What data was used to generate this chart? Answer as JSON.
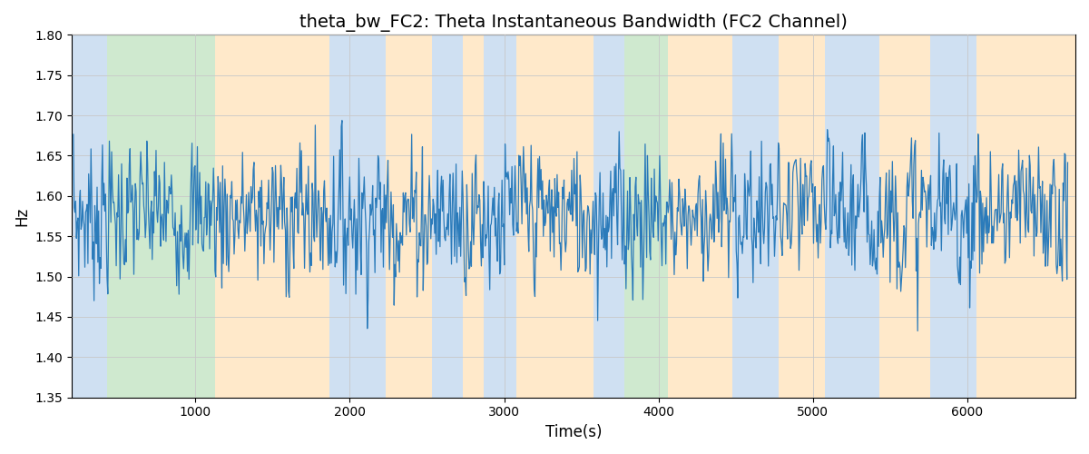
{
  "title": "theta_bw_FC2: Theta Instantaneous Bandwidth (FC2 Channel)",
  "xlabel": "Time(s)",
  "ylabel": "Hz",
  "xlim": [
    200,
    6700
  ],
  "ylim": [
    1.35,
    1.8
  ],
  "line_color": "#2b7bba",
  "line_width": 0.9,
  "bg_regions": [
    {
      "xmin": 200,
      "xmax": 430,
      "color": "#a8c8e8",
      "alpha": 0.55
    },
    {
      "xmin": 430,
      "xmax": 1130,
      "color": "#a8d8a8",
      "alpha": 0.55
    },
    {
      "xmin": 1130,
      "xmax": 1870,
      "color": "#ffd8a0",
      "alpha": 0.55
    },
    {
      "xmin": 1870,
      "xmax": 2230,
      "color": "#a8c8e8",
      "alpha": 0.55
    },
    {
      "xmin": 2230,
      "xmax": 2530,
      "color": "#ffd8a0",
      "alpha": 0.55
    },
    {
      "xmin": 2530,
      "xmax": 2730,
      "color": "#a8c8e8",
      "alpha": 0.55
    },
    {
      "xmin": 2730,
      "xmax": 2870,
      "color": "#ffd8a0",
      "alpha": 0.55
    },
    {
      "xmin": 2870,
      "xmax": 3080,
      "color": "#a8c8e8",
      "alpha": 0.55
    },
    {
      "xmin": 3080,
      "xmax": 3580,
      "color": "#ffd8a0",
      "alpha": 0.55
    },
    {
      "xmin": 3580,
      "xmax": 3780,
      "color": "#a8c8e8",
      "alpha": 0.55
    },
    {
      "xmin": 3780,
      "xmax": 4060,
      "color": "#a8d8a8",
      "alpha": 0.55
    },
    {
      "xmin": 4060,
      "xmax": 4480,
      "color": "#ffd8a0",
      "alpha": 0.55
    },
    {
      "xmin": 4480,
      "xmax": 4780,
      "color": "#a8c8e8",
      "alpha": 0.55
    },
    {
      "xmin": 4780,
      "xmax": 5080,
      "color": "#ffd8a0",
      "alpha": 0.55
    },
    {
      "xmin": 5080,
      "xmax": 5430,
      "color": "#a8c8e8",
      "alpha": 0.55
    },
    {
      "xmin": 5430,
      "xmax": 5760,
      "color": "#ffd8a0",
      "alpha": 0.55
    },
    {
      "xmin": 5760,
      "xmax": 6060,
      "color": "#a8c8e8",
      "alpha": 0.55
    },
    {
      "xmin": 6060,
      "xmax": 6700,
      "color": "#ffd8a0",
      "alpha": 0.55
    }
  ],
  "seed": 7,
  "n_points": 1300,
  "t_start": 210,
  "t_end": 6650,
  "mean_val": 1.578,
  "std_val": 0.06,
  "grid_color": "#c8c8c8",
  "title_fontsize": 14,
  "label_fontsize": 12
}
